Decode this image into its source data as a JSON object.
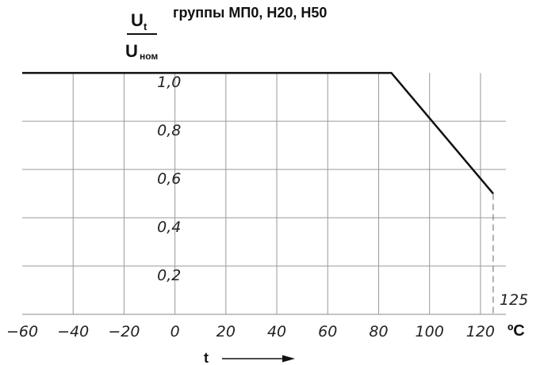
{
  "chart_data": {
    "type": "line",
    "title": "группы МП0, Н20, Н50",
    "ylabel": {
      "numerator": "U",
      "numerator_sub": "t",
      "denominator": "U",
      "denominator_sub": "ном"
    },
    "xlabel": "t",
    "x_unit": "ºС",
    "x_ticks": [
      -60,
      -40,
      -20,
      0,
      20,
      40,
      60,
      80,
      100,
      120
    ],
    "x_tick_labels": [
      "−60",
      "−40",
      "−20",
      "0",
      "20",
      "40",
      "60",
      "80",
      "100",
      "120"
    ],
    "y_ticks": [
      0.2,
      0.4,
      0.6,
      0.8,
      1.0
    ],
    "y_tick_labels": [
      "0,2",
      "0,4",
      "0,6",
      "0,8",
      "1,0"
    ],
    "xlim": [
      -60,
      130
    ],
    "ylim": [
      0.0,
      1.02
    ],
    "grid": true,
    "annotations": [
      {
        "x": 125,
        "text": "125"
      }
    ],
    "series": [
      {
        "x": [
          -60,
          85,
          125
        ],
        "y": [
          1.0,
          1.0,
          0.5
        ]
      }
    ]
  }
}
